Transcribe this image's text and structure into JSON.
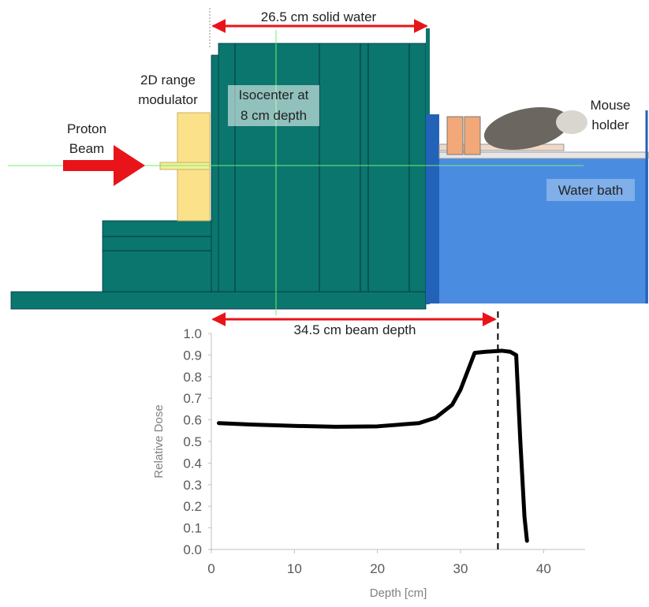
{
  "diagram": {
    "solid_water_label": "26.5 cm solid water",
    "modulator_label": [
      "2D range",
      "modulator"
    ],
    "beam_label": [
      "Proton",
      "Beam"
    ],
    "isocenter_label": [
      "Isocenter at",
      "8 cm depth"
    ],
    "holder_label": [
      "Mouse",
      "holder"
    ],
    "bath_label": "Water bath",
    "beam_depth_label": "34.5 cm beam depth"
  },
  "chart_data": {
    "type": "line",
    "x_label": "Depth [cm]",
    "y_label": "Relative Dose",
    "x": [
      0.9,
      5,
      10,
      15,
      20,
      25,
      27,
      29,
      30,
      31,
      31.7,
      33,
      35,
      36,
      36.7,
      37.2,
      37.7,
      38
    ],
    "series": [
      {
        "name": "Relative Dose",
        "color": "#000000",
        "values": [
          0.585,
          0.578,
          0.572,
          0.568,
          0.57,
          0.585,
          0.61,
          0.67,
          0.74,
          0.84,
          0.91,
          0.915,
          0.92,
          0.915,
          0.9,
          0.5,
          0.15,
          0.04
        ]
      }
    ],
    "vline": 34.5,
    "xlim": [
      0,
      45
    ],
    "ylim": [
      0,
      1
    ],
    "xticks": [
      0,
      10,
      20,
      30,
      40
    ],
    "yticks": [
      {
        "value": 0,
        "label": "0.0"
      },
      0.1,
      0.2,
      0.3,
      0.4,
      0.5,
      0.6,
      0.7,
      0.8,
      0.9,
      {
        "value": 1,
        "label": "1.0"
      }
    ]
  }
}
